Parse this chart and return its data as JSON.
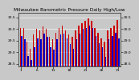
{
  "title": "Milwaukee Barometric Pressure Daily High/Low",
  "highs": [
    30.05,
    30.05,
    29.45,
    29.15,
    29.75,
    30.0,
    29.95,
    30.1,
    30.0,
    29.65,
    29.55,
    29.85,
    30.05,
    30.15,
    29.95,
    29.75,
    29.65,
    29.95,
    30.15,
    30.25,
    30.35,
    30.45,
    30.35,
    30.05,
    29.85,
    29.6,
    29.45,
    29.95,
    30.05,
    30.15,
    30.4
  ],
  "lows": [
    29.7,
    29.55,
    28.85,
    28.65,
    29.2,
    29.6,
    29.55,
    29.8,
    29.65,
    29.2,
    29.1,
    29.55,
    29.75,
    29.8,
    29.6,
    29.35,
    29.15,
    29.55,
    29.8,
    30.0,
    30.05,
    30.15,
    30.05,
    29.7,
    29.4,
    29.2,
    28.8,
    29.55,
    29.7,
    29.85,
    29.6
  ],
  "ylim_min": 28.4,
  "ylim_max": 30.7,
  "ytick_values": [
    28.5,
    29.0,
    29.5,
    30.0,
    30.5
  ],
  "bar_color_high": "#cc0000",
  "bar_color_low": "#0000cc",
  "plot_bg_color": "#c8c8c8",
  "fig_bg_color": "#c8c8c8",
  "title_fontsize": 4.2,
  "tick_fontsize": 3.2,
  "bar_width": 0.42,
  "bar_gap": 0.02,
  "n_bars": 31
}
